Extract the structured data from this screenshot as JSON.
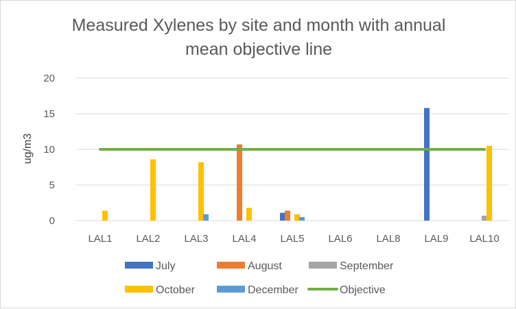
{
  "chart_data": {
    "type": "bar",
    "title_lines": [
      "Measured Xylenes by site and month with annual",
      "mean objective line"
    ],
    "xlabel": "",
    "ylabel": "ug/m3",
    "ylim": [
      0,
      20
    ],
    "yticks": [
      0,
      5,
      10,
      15,
      20
    ],
    "grid": true,
    "legend_position": "bottom",
    "categories": [
      "LAL1",
      "LAL2",
      "LAL3",
      "LAL4",
      "LAL5",
      "LAL6",
      "LAL8",
      "LAL9",
      "LAL10"
    ],
    "series": [
      {
        "name": "July",
        "color": "#4472c4",
        "values": [
          null,
          null,
          null,
          null,
          1.1,
          null,
          null,
          15.8,
          null
        ]
      },
      {
        "name": "August",
        "color": "#ed7d31",
        "values": [
          null,
          null,
          null,
          10.7,
          1.4,
          null,
          null,
          null,
          null
        ]
      },
      {
        "name": "September",
        "color": "#a5a5a5",
        "values": [
          null,
          null,
          null,
          null,
          null,
          null,
          null,
          null,
          0.7
        ]
      },
      {
        "name": "October",
        "color": "#ffc000",
        "values": [
          1.4,
          8.6,
          8.2,
          1.8,
          0.9,
          null,
          null,
          null,
          10.5
        ]
      },
      {
        "name": "December",
        "color": "#5b9bd5",
        "values": [
          null,
          null,
          0.9,
          null,
          0.5,
          null,
          null,
          null,
          null
        ]
      }
    ],
    "objective": {
      "name": "Objective",
      "color": "#70ad47",
      "value": 10
    }
  }
}
